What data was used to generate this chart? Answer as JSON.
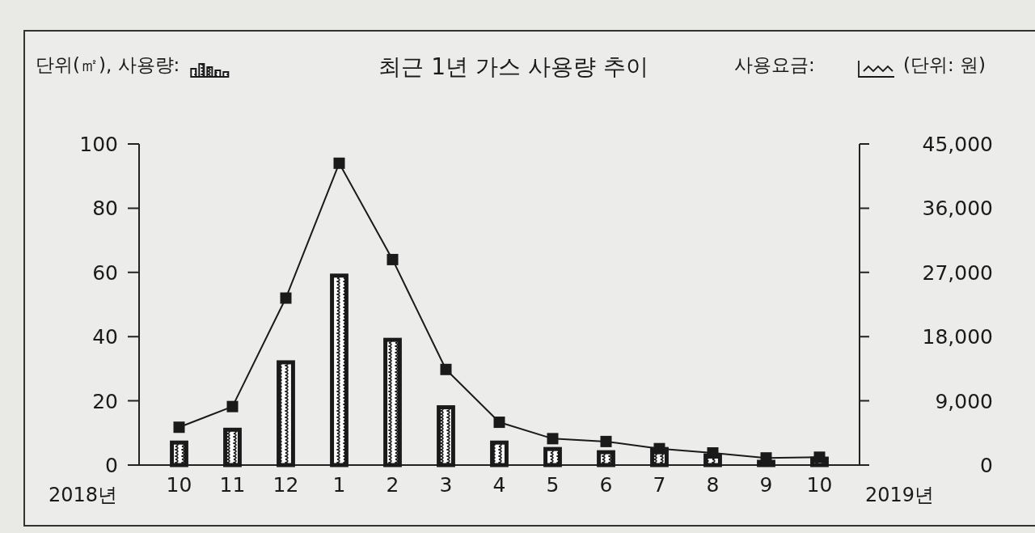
{
  "chart_data": {
    "type": "bar",
    "title": "최근 1년 가스 사용량 추이",
    "y2label": "(단위: 원)",
    "categories": [
      "10",
      "11",
      "12",
      "1",
      "2",
      "3",
      "4",
      "5",
      "6",
      "7",
      "8",
      "9",
      "10"
    ],
    "series": [
      {
        "name": "단위(㎡), 사용량:",
        "color": "#1a1a1a",
        "values": [
          7,
          11,
          32,
          59,
          39,
          18,
          7,
          5,
          4,
          5,
          3,
          1,
          2
        ]
      },
      {
        "name": "사용요금:",
        "type": "line",
        "axis": "y2",
        "color": "#1a1a1a",
        "marker": "square",
        "values": [
          5300,
          8200,
          23400,
          42300,
          28800,
          13400,
          6000,
          3700,
          3300,
          2300,
          1700,
          1000,
          1100
        ]
      }
    ],
    "ylim": [
      0,
      100
    ],
    "yticks": [
      0,
      20,
      40,
      60,
      80,
      100
    ],
    "y2lim": [
      0,
      45000
    ],
    "y2ticks": [
      0,
      {
        "value": 9000,
        "label": "9,000"
      },
      {
        "value": 18000,
        "label": "18,000"
      },
      {
        "value": 27000,
        "label": "27,000"
      },
      {
        "value": 36000,
        "label": "36,000"
      },
      {
        "value": 45000,
        "label": "45,000"
      }
    ],
    "legend": "top",
    "annotations": [
      "2018년",
      "2019년"
    ]
  }
}
